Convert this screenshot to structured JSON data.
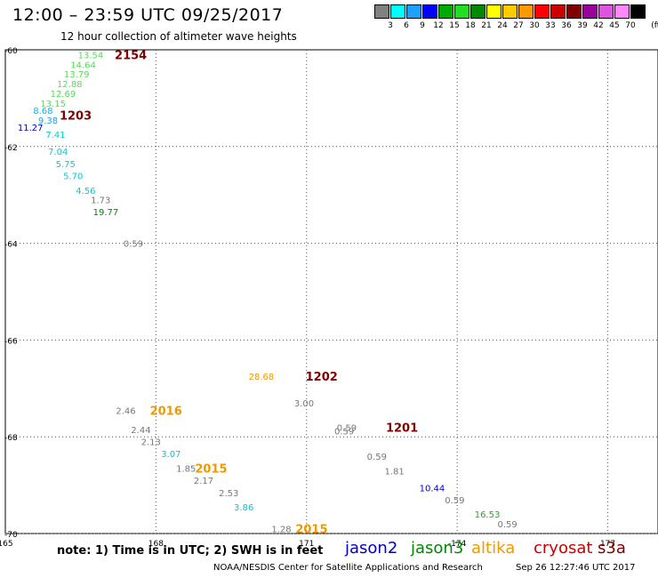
{
  "header": {
    "title": "12:00 – 23:59 UTC 09/25/2017",
    "subtitle": "12 hour collection of altimeter wave heights"
  },
  "scale": {
    "unit": "(ft)",
    "colors": [
      "#808080",
      "#00ffff",
      "#1ea0ff",
      "#0000ff",
      "#00aa00",
      "#22dd22",
      "#008800",
      "#ffff00",
      "#ffcc00",
      "#ff9900",
      "#ff0000",
      "#cc0000",
      "#800000",
      "#990099",
      "#dd55dd",
      "#ff88ff",
      "#000000"
    ],
    "ticks": [
      "3",
      "6",
      "9",
      "12",
      "15",
      "18",
      "21",
      "24",
      "27",
      "30",
      "33",
      "36",
      "39",
      "42",
      "45",
      "70"
    ]
  },
  "map": {
    "x_range": [
      165,
      178
    ],
    "y_range": [
      -60,
      -70
    ],
    "x_grid": [
      168,
      171,
      174,
      177
    ],
    "y_grid": [
      -62,
      -64,
      -66,
      -68,
      -70
    ],
    "x_tick_labels": [
      {
        "value": 165,
        "text": "165"
      },
      {
        "value": 168,
        "text": "168"
      },
      {
        "value": 171,
        "text": "171"
      },
      {
        "value": 174,
        "text": "-174"
      },
      {
        "value": 177,
        "text": "177"
      }
    ],
    "y_tick_labels": [
      {
        "value": -60,
        "text": "-60"
      },
      {
        "value": -62,
        "text": "-62"
      },
      {
        "value": -64,
        "text": "-64"
      },
      {
        "value": -66,
        "text": "-66"
      },
      {
        "value": -68,
        "text": "-68"
      },
      {
        "value": -70,
        "text": "-70"
      }
    ],
    "observations": [
      {
        "lon": 166.7,
        "lat": -60.1,
        "text": "13.54",
        "color": "#55dd55"
      },
      {
        "lon": 166.55,
        "lat": -60.3,
        "text": "14.64",
        "color": "#55dd55"
      },
      {
        "lon": 166.42,
        "lat": -60.5,
        "text": "13.79",
        "color": "#55dd55"
      },
      {
        "lon": 166.28,
        "lat": -60.7,
        "text": "12.88",
        "color": "#55dd55"
      },
      {
        "lon": 166.15,
        "lat": -60.9,
        "text": "12.69",
        "color": "#55dd55"
      },
      {
        "lon": 165.95,
        "lat": -61.1,
        "text": "13.15",
        "color": "#55dd55"
      },
      {
        "lon": 165.75,
        "lat": -61.25,
        "text": "8.68",
        "color": "#00bbee"
      },
      {
        "lon": 165.85,
        "lat": -61.45,
        "text": "9.38",
        "color": "#1e9fdd"
      },
      {
        "lon": 165.5,
        "lat": -61.6,
        "text": "11.27",
        "color": "#0000cc"
      },
      {
        "lon": 166.0,
        "lat": -61.75,
        "text": "7.41",
        "color": "#00cccc"
      },
      {
        "lon": 166.05,
        "lat": -62.1,
        "text": "7.04",
        "color": "#00cccc"
      },
      {
        "lon": 166.2,
        "lat": -62.35,
        "text": "5.75",
        "color": "#00cccc"
      },
      {
        "lon": 166.35,
        "lat": -62.6,
        "text": "5.70",
        "color": "#00cccc"
      },
      {
        "lon": 166.6,
        "lat": -62.9,
        "text": "4.56",
        "color": "#00cccc"
      },
      {
        "lon": 166.9,
        "lat": -63.1,
        "text": "1.73",
        "color": "#777777"
      },
      {
        "lon": 167.0,
        "lat": -63.35,
        "text": "19.77",
        "color": "#008800"
      },
      {
        "lon": 167.55,
        "lat": -64.0,
        "text": "0.59",
        "color": "#777777"
      },
      {
        "lon": 170.1,
        "lat": -66.75,
        "text": "28.68",
        "color": "#ee9900"
      },
      {
        "lon": 170.95,
        "lat": -67.3,
        "text": "3.00",
        "color": "#777777"
      },
      {
        "lon": 167.4,
        "lat": -67.45,
        "text": "2.46",
        "color": "#777777"
      },
      {
        "lon": 171.8,
        "lat": -67.8,
        "text": "0.59",
        "color": "#777777"
      },
      {
        "lon": 171.75,
        "lat": -67.88,
        "text": "0.59",
        "color": "#777777"
      },
      {
        "lon": 167.7,
        "lat": -67.85,
        "text": "2.44",
        "color": "#777777"
      },
      {
        "lon": 167.9,
        "lat": -68.1,
        "text": "2.13",
        "color": "#777777"
      },
      {
        "lon": 168.3,
        "lat": -68.35,
        "text": "3.07",
        "color": "#00cccc"
      },
      {
        "lon": 172.4,
        "lat": -68.4,
        "text": "0.59",
        "color": "#777777"
      },
      {
        "lon": 168.6,
        "lat": -68.65,
        "text": "1.85",
        "color": "#777777"
      },
      {
        "lon": 172.75,
        "lat": -68.7,
        "text": "1.81",
        "color": "#777777"
      },
      {
        "lon": 168.95,
        "lat": -68.9,
        "text": "2.17",
        "color": "#777777"
      },
      {
        "lon": 173.5,
        "lat": -69.05,
        "text": "10.44",
        "color": "#0000cc"
      },
      {
        "lon": 169.45,
        "lat": -69.15,
        "text": "2.53",
        "color": "#777777"
      },
      {
        "lon": 173.95,
        "lat": -69.3,
        "text": "0.59",
        "color": "#777777"
      },
      {
        "lon": 169.75,
        "lat": -69.45,
        "text": "3.86",
        "color": "#00cccc"
      },
      {
        "lon": 174.6,
        "lat": -69.6,
        "text": "16.53",
        "color": "#22aa22"
      },
      {
        "lon": 175.0,
        "lat": -69.8,
        "text": "0.59",
        "color": "#777777"
      },
      {
        "lon": 170.5,
        "lat": -69.9,
        "text": "1.28",
        "color": "#777777"
      }
    ],
    "pass_times": [
      {
        "lon": 167.5,
        "lat": -60.1,
        "text": "2154",
        "color": "#800000"
      },
      {
        "lon": 166.4,
        "lat": -61.35,
        "text": "1203",
        "color": "#800000"
      },
      {
        "lon": 171.3,
        "lat": -66.75,
        "text": "1202",
        "color": "#800000"
      },
      {
        "lon": 172.9,
        "lat": -67.8,
        "text": "1201",
        "color": "#800000"
      },
      {
        "lon": 168.2,
        "lat": -67.45,
        "text": "2016",
        "color": "#ee9900"
      },
      {
        "lon": 169.1,
        "lat": -68.65,
        "text": "2015",
        "color": "#ee9900"
      },
      {
        "lon": 171.1,
        "lat": -69.9,
        "text": "2015",
        "color": "#ee9900"
      }
    ]
  },
  "footer": {
    "note": "note: 1) Time is in UTC; 2) SWH is in feet",
    "satellites": [
      {
        "name": "jason2",
        "color": "#0000cc"
      },
      {
        "name": "jason3",
        "color": "#008800"
      },
      {
        "name": "altika",
        "color": "#ee9900"
      },
      {
        "name": "cryosat",
        "color": "#cc0000"
      },
      {
        "name": "s3a",
        "color": "#800000"
      }
    ],
    "credit": "NOAA/NESDIS Center for Satellite Applications and Research",
    "timestamp": "Sep 26 12:27:46 UTC 2017"
  }
}
